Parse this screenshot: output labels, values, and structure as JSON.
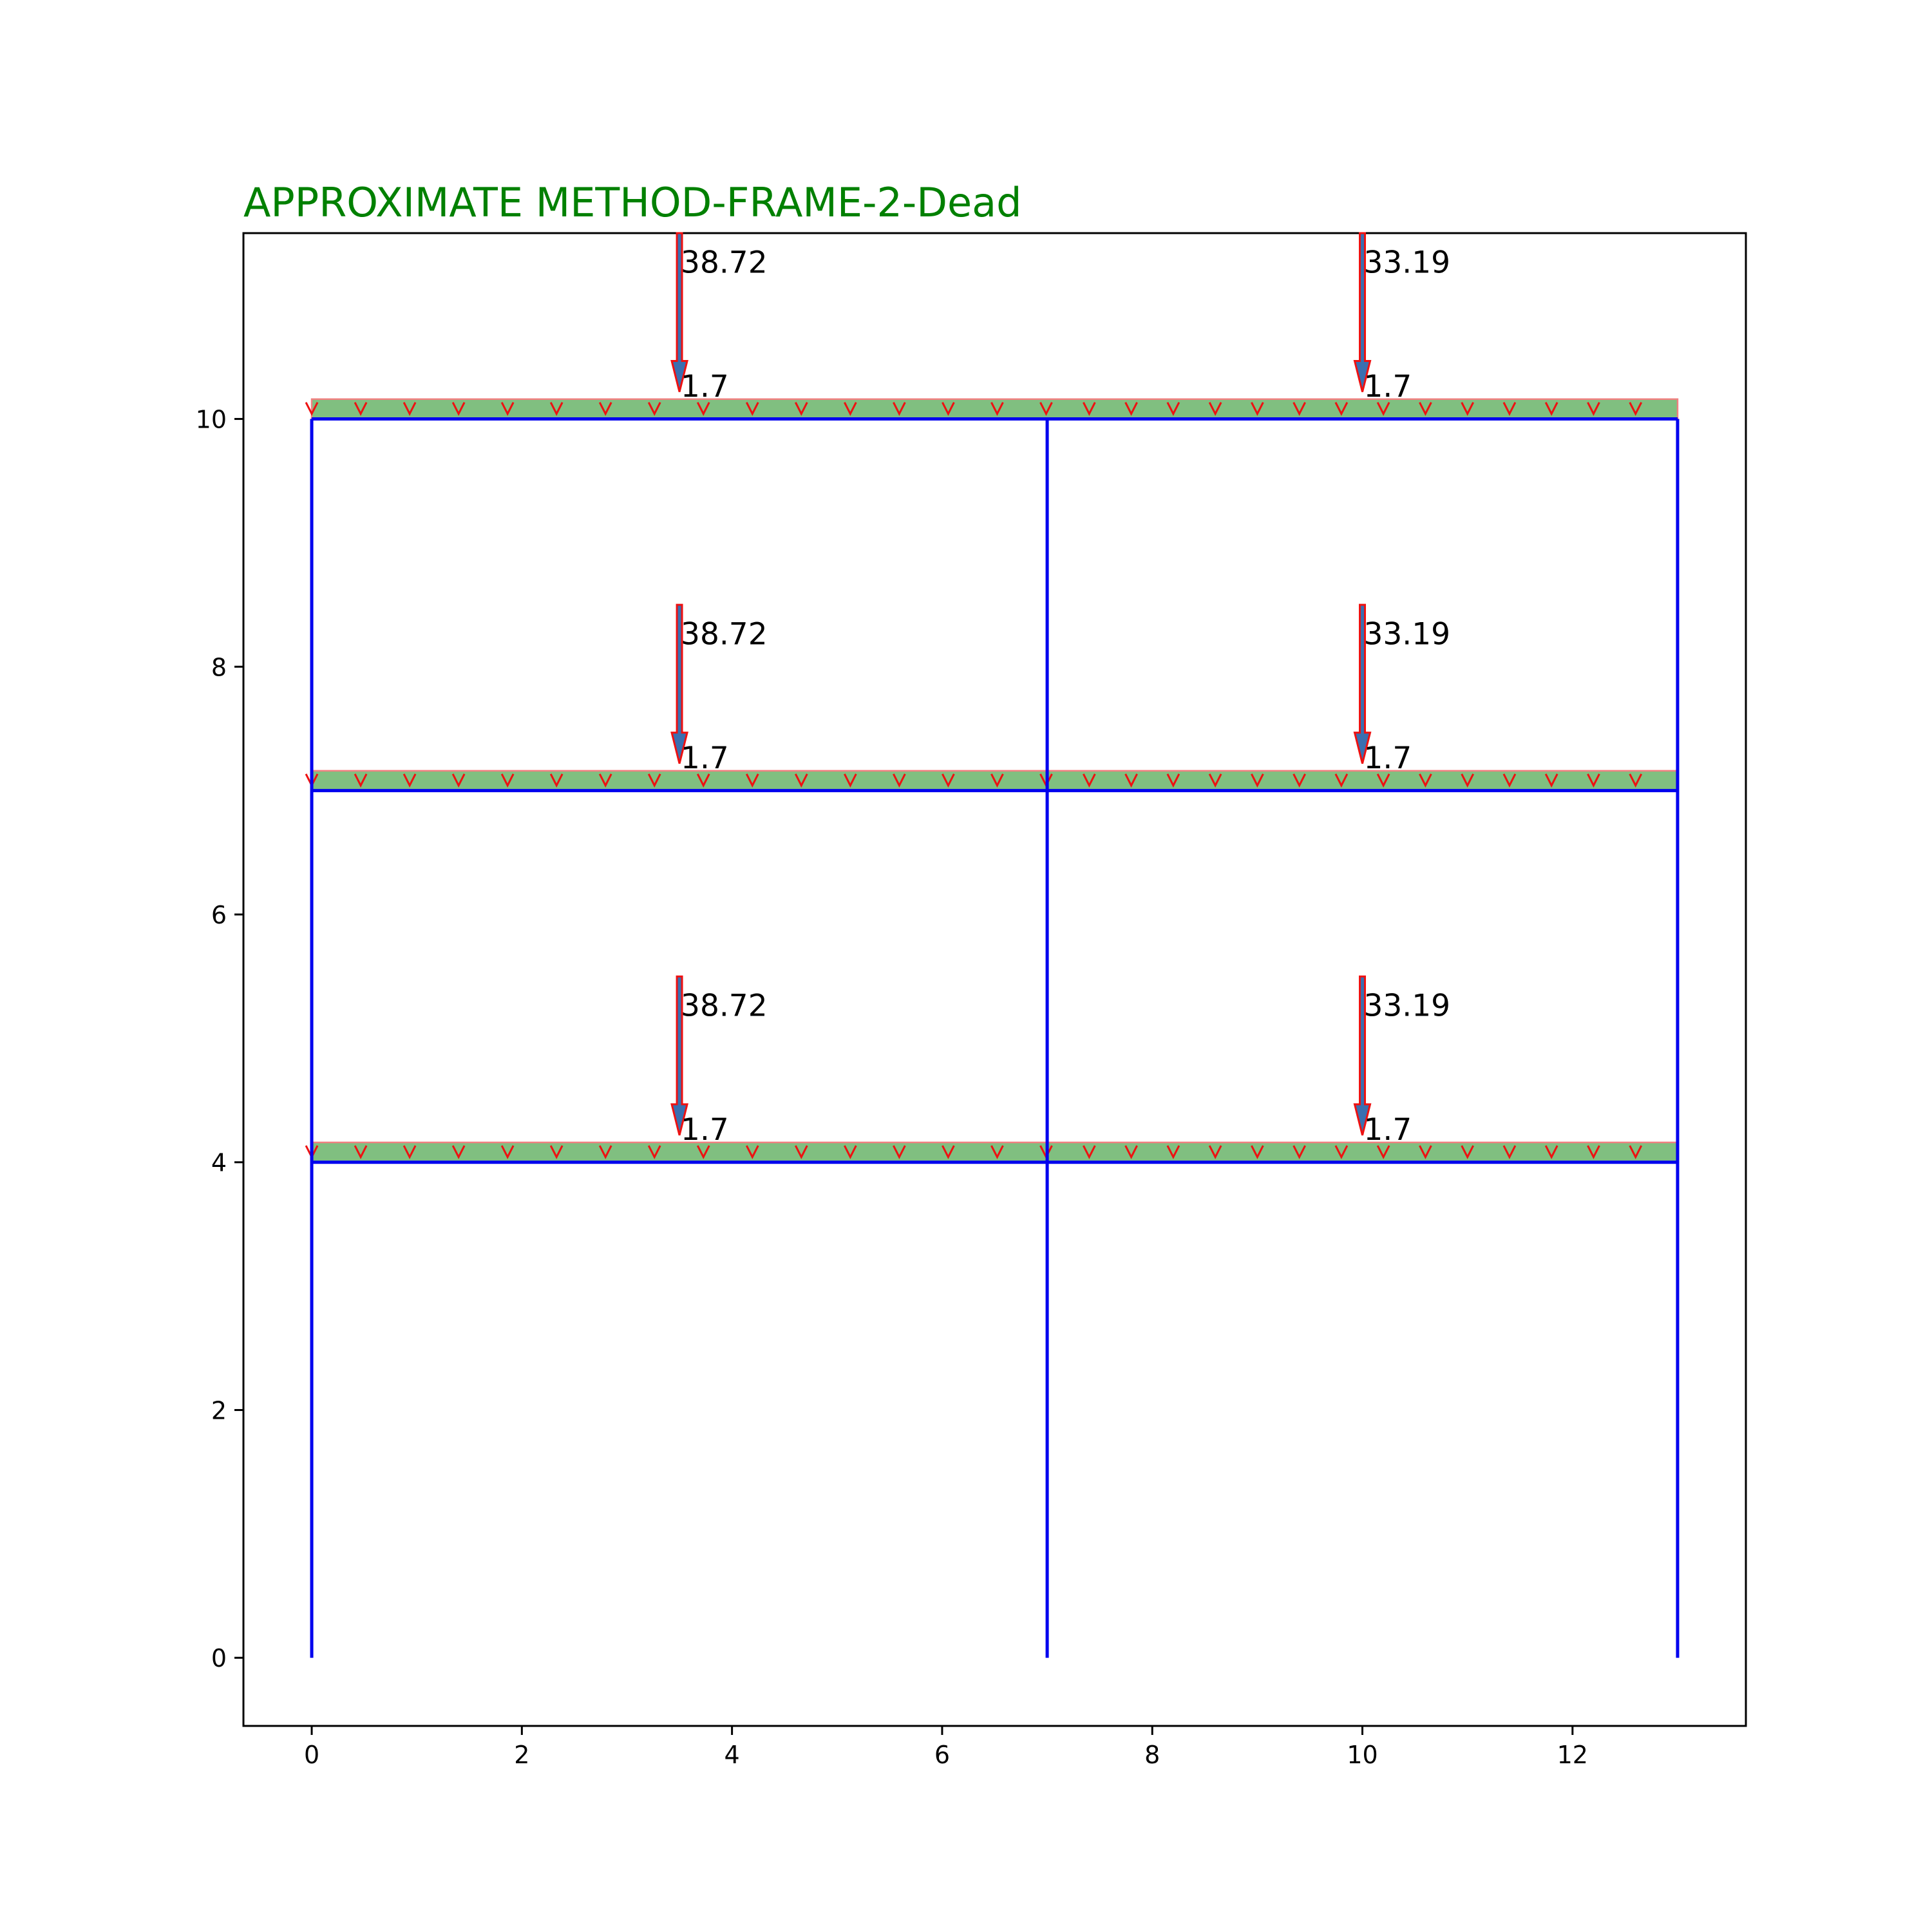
{
  "chart_data": {
    "type": "diagram",
    "title": "APPROXIMATE METHOD-FRAME-2-Dead",
    "xlim": [
      -0.65,
      13.65
    ],
    "ylim": [
      -0.55,
      11.5
    ],
    "xticks": [
      0,
      2,
      4,
      6,
      8,
      10,
      12
    ],
    "yticks": [
      0,
      2,
      4,
      6,
      8,
      10
    ],
    "colors": {
      "title": "#008000",
      "frame": "#0000ee",
      "udl_fill": "#80bf80",
      "udl_edge": "#f08080",
      "arrow_edge": "#ee1111",
      "arrow_fill": "#3a6fb0"
    },
    "columns_x": [
      0,
      7,
      13
    ],
    "beams": [
      {
        "y": 4,
        "x_from": 0,
        "x_to": 13
      },
      {
        "y": 7,
        "x_from": 0,
        "x_to": 13
      },
      {
        "y": 10,
        "x_from": 0,
        "x_to": 13
      }
    ],
    "udl": {
      "height": 0.16,
      "spacing_left": 0.466,
      "spacing_right": 0.4
    },
    "point_loads": [
      {
        "x": 3.5,
        "floor_y": 4,
        "load": "38.72",
        "udl": "1.7"
      },
      {
        "x": 10,
        "floor_y": 4,
        "load": "33.19",
        "udl": "1.7"
      },
      {
        "x": 3.5,
        "floor_y": 7,
        "load": "38.72",
        "udl": "1.7"
      },
      {
        "x": 10,
        "floor_y": 7,
        "load": "33.19",
        "udl": "1.7"
      },
      {
        "x": 3.5,
        "floor_y": 10,
        "load": "38.72",
        "udl": "1.7"
      },
      {
        "x": 10,
        "floor_y": 10,
        "load": "33.19",
        "udl": "1.7"
      }
    ]
  }
}
